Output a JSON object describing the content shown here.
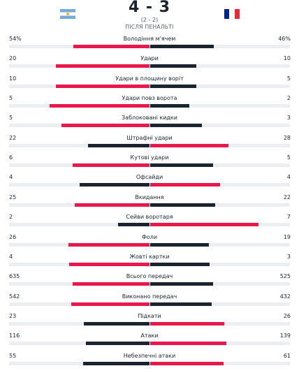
{
  "match": {
    "score": "4 - 3",
    "penalty_score": "(2 - 2)",
    "after_label": "ПІСЛЯ ПЕНАЛЬТІ",
    "home_flag": "argentina-flag",
    "away_flag": "france-flag"
  },
  "colors": {
    "higher": "#e8194a",
    "lower": "#1b2330",
    "track": "#eceef1"
  },
  "stats": [
    {
      "label": "Володіння м'ячем",
      "home": "54%",
      "away": "46%",
      "home_share": 0.54,
      "home_higher": true
    },
    {
      "label": "Удари",
      "home": "20",
      "away": "10",
      "home_share": 0.667,
      "home_higher": true
    },
    {
      "label": "Удари в площину воріт",
      "home": "10",
      "away": "5",
      "home_share": 0.667,
      "home_higher": true
    },
    {
      "label": "Удари повз ворота",
      "home": "5",
      "away": "2",
      "home_share": 0.714,
      "home_higher": true
    },
    {
      "label": "Заблоковані кидки",
      "home": "5",
      "away": "3",
      "home_share": 0.625,
      "home_higher": true
    },
    {
      "label": "Штрафні удари",
      "home": "22",
      "away": "28",
      "home_share": 0.44,
      "home_higher": false
    },
    {
      "label": "Кутові удари",
      "home": "6",
      "away": "5",
      "home_share": 0.545,
      "home_higher": true
    },
    {
      "label": "Офсайди",
      "home": "4",
      "away": "4",
      "home_share": 0.5,
      "home_higher": false
    },
    {
      "label": "Вкидання",
      "home": "25",
      "away": "22",
      "home_share": 0.532,
      "home_higher": true
    },
    {
      "label": "Сейви воротаря",
      "home": "2",
      "away": "7",
      "home_share": 0.222,
      "home_higher": false
    },
    {
      "label": "Фоли",
      "home": "26",
      "away": "19",
      "home_share": 0.578,
      "home_higher": true
    },
    {
      "label": "Жовті картки",
      "home": "4",
      "away": "3",
      "home_share": 0.571,
      "home_higher": true
    },
    {
      "label": "Всього передач",
      "home": "635",
      "away": "525",
      "home_share": 0.547,
      "home_higher": true
    },
    {
      "label": "Виконано передач",
      "home": "542",
      "away": "432",
      "home_share": 0.556,
      "home_higher": true
    },
    {
      "label": "Підкати",
      "home": "23",
      "away": "26",
      "home_share": 0.469,
      "home_higher": false
    },
    {
      "label": "Атаки",
      "home": "116",
      "away": "139",
      "home_share": 0.455,
      "home_higher": false
    },
    {
      "label": "Небезпечні атаки",
      "home": "55",
      "away": "61",
      "home_share": 0.474,
      "home_higher": false
    }
  ]
}
